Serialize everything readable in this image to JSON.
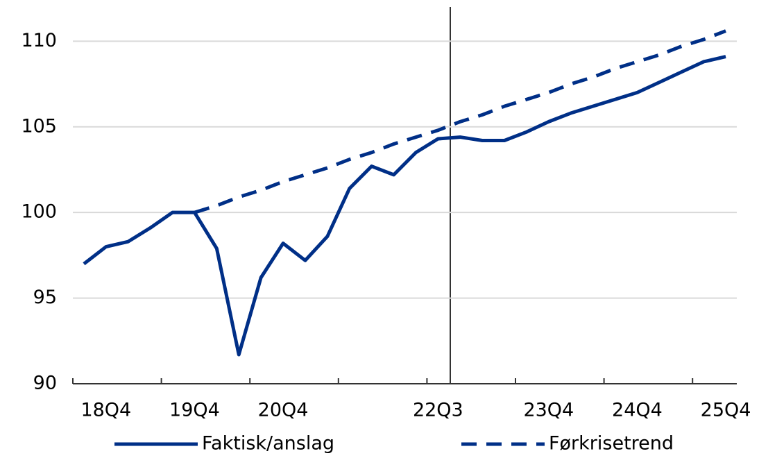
{
  "chart_data": {
    "type": "line",
    "categories": [
      null,
      "18Q4",
      null,
      null,
      null,
      "19Q4",
      null,
      null,
      null,
      "20Q4",
      null,
      null,
      null,
      null,
      null,
      null,
      "22Q3",
      null,
      null,
      null,
      null,
      "23Q4",
      null,
      null,
      null,
      "24Q4",
      null,
      null,
      null,
      "25Q4"
    ],
    "series": [
      {
        "name": "Faktisk/anslag",
        "color": "#002f87",
        "dash": false,
        "values": [
          97.0,
          98.0,
          98.3,
          99.1,
          100.0,
          100.0,
          97.9,
          91.7,
          96.2,
          98.2,
          97.2,
          98.6,
          101.4,
          102.7,
          102.2,
          103.5,
          104.3,
          104.4,
          104.2,
          104.2,
          104.7,
          105.3,
          105.8,
          106.2,
          106.6,
          107.0,
          107.6,
          108.2,
          108.8,
          109.1
        ]
      },
      {
        "name": "Førkrisetrend",
        "color": "#002f87",
        "dash": true,
        "values": [
          null,
          null,
          null,
          null,
          null,
          100.0,
          100.4,
          100.9,
          101.3,
          101.8,
          102.2,
          102.6,
          103.1,
          103.5,
          104.0,
          104.4,
          104.8,
          105.3,
          105.7,
          106.2,
          106.6,
          107.0,
          107.5,
          107.9,
          108.4,
          108.8,
          109.2,
          109.7,
          110.1,
          110.6
        ]
      }
    ],
    "ylim": [
      90,
      112
    ],
    "yticks": [
      90,
      95,
      100,
      105,
      110
    ],
    "grid": true
  }
}
